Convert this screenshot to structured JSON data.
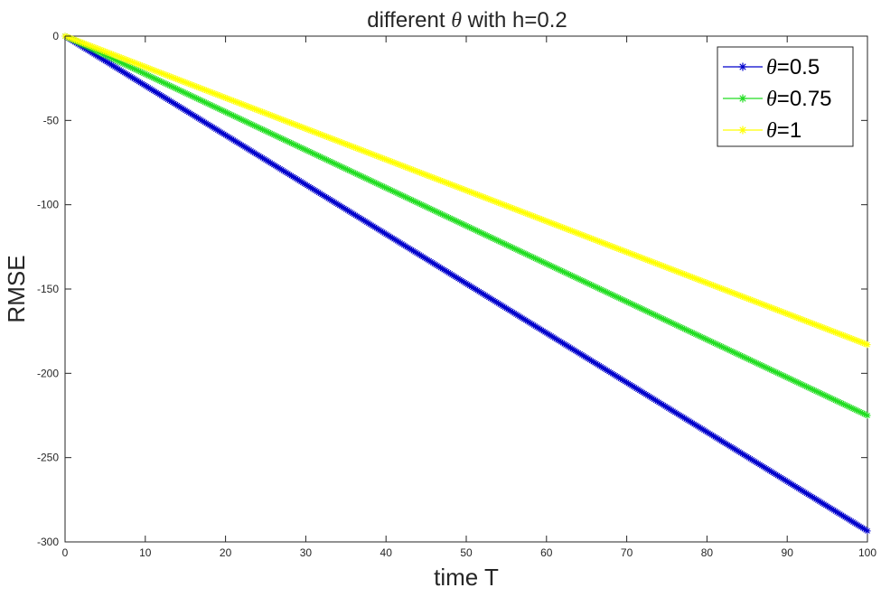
{
  "chart_data": {
    "type": "line",
    "title_prefix": "different ",
    "title_symbol": "θ",
    "title_suffix": " with h=0.2",
    "xlabel": "time T",
    "ylabel": "RMSE",
    "xlim": [
      0,
      100
    ],
    "ylim": [
      -300,
      0
    ],
    "xticks": [
      0,
      10,
      20,
      30,
      40,
      50,
      60,
      70,
      80,
      90,
      100
    ],
    "yticks": [
      0,
      -50,
      -100,
      -150,
      -200,
      -250,
      -300
    ],
    "grid": false,
    "legend_position": "top-right",
    "marker": "asterisk",
    "series": [
      {
        "symbol": "θ",
        "name": "=0.5",
        "color": "#0000cc",
        "x": [
          0,
          100
        ],
        "y": [
          0,
          -293.5
        ]
      },
      {
        "symbol": "θ",
        "name": "=0.75",
        "color": "#22dd22",
        "x": [
          0,
          100
        ],
        "y": [
          0,
          -225
        ]
      },
      {
        "symbol": "θ",
        "name": "=1",
        "color": "#ffff00",
        "x": [
          0,
          100
        ],
        "y": [
          0,
          -183
        ]
      }
    ]
  }
}
